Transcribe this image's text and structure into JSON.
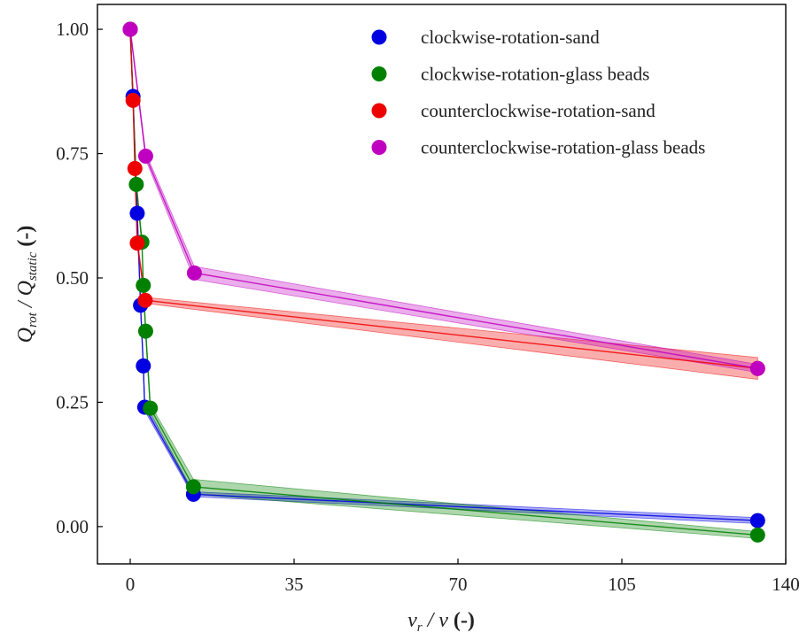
{
  "chart_data": {
    "type": "scatter",
    "xlabel": "v_r / v (-)",
    "ylabel": "Q_rot / Q_static (-)",
    "xlim": [
      -7,
      140
    ],
    "ylim": [
      -0.075,
      1.05
    ],
    "xticks": [
      0,
      35,
      70,
      105,
      140
    ],
    "yticks": [
      0.0,
      0.25,
      0.5,
      0.75,
      1.0
    ],
    "xtick_labels": [
      "0",
      "35",
      "70",
      "105",
      "140"
    ],
    "ytick_labels": [
      "0.00",
      "0.25",
      "0.50",
      "0.75",
      "1.00"
    ],
    "grid": false,
    "legend_position": "top-right",
    "series": [
      {
        "name": "clockwise-rotation-sand",
        "color": "#0000e0",
        "points": [
          [
            0,
            1.0
          ],
          [
            0.6,
            0.865
          ],
          [
            1.5,
            0.63
          ],
          [
            2.2,
            0.445
          ],
          [
            2.8,
            0.323
          ],
          [
            3.1,
            0.24
          ],
          [
            13.5,
            0.065
          ],
          [
            134,
            0.012
          ]
        ],
        "band": [
          0.004,
          0.004,
          0.006,
          0.006,
          0.006,
          0.007,
          0.005,
          0.006
        ]
      },
      {
        "name": "clockwise-rotation-glass beads",
        "color": "#008000",
        "points": [
          [
            0,
            1.0
          ],
          [
            1.3,
            0.688
          ],
          [
            2.5,
            0.572
          ],
          [
            2.8,
            0.485
          ],
          [
            3.3,
            0.393
          ],
          [
            4.3,
            0.238
          ],
          [
            13.5,
            0.08
          ],
          [
            134,
            -0.017
          ]
        ],
        "band": [
          0.004,
          0.006,
          0.008,
          0.008,
          0.01,
          0.008,
          0.015,
          0.007
        ]
      },
      {
        "name": "counterclockwise-rotation-sand",
        "color": "#ee0000",
        "points": [
          [
            0,
            1.0
          ],
          [
            0.6,
            0.857
          ],
          [
            1.0,
            0.72
          ],
          [
            1.5,
            0.57
          ],
          [
            3.2,
            0.455
          ],
          [
            134,
            0.318
          ]
        ],
        "band": [
          0.004,
          0.006,
          0.006,
          0.008,
          0.006,
          0.022
        ]
      },
      {
        "name": "counterclockwise-rotation-glass beads",
        "color": "#c000c0",
        "points": [
          [
            0,
            1.0
          ],
          [
            3.3,
            0.745
          ],
          [
            13.7,
            0.51
          ],
          [
            134,
            0.318
          ]
        ],
        "band": [
          0.004,
          0.007,
          0.013,
          0.008
        ]
      }
    ]
  }
}
